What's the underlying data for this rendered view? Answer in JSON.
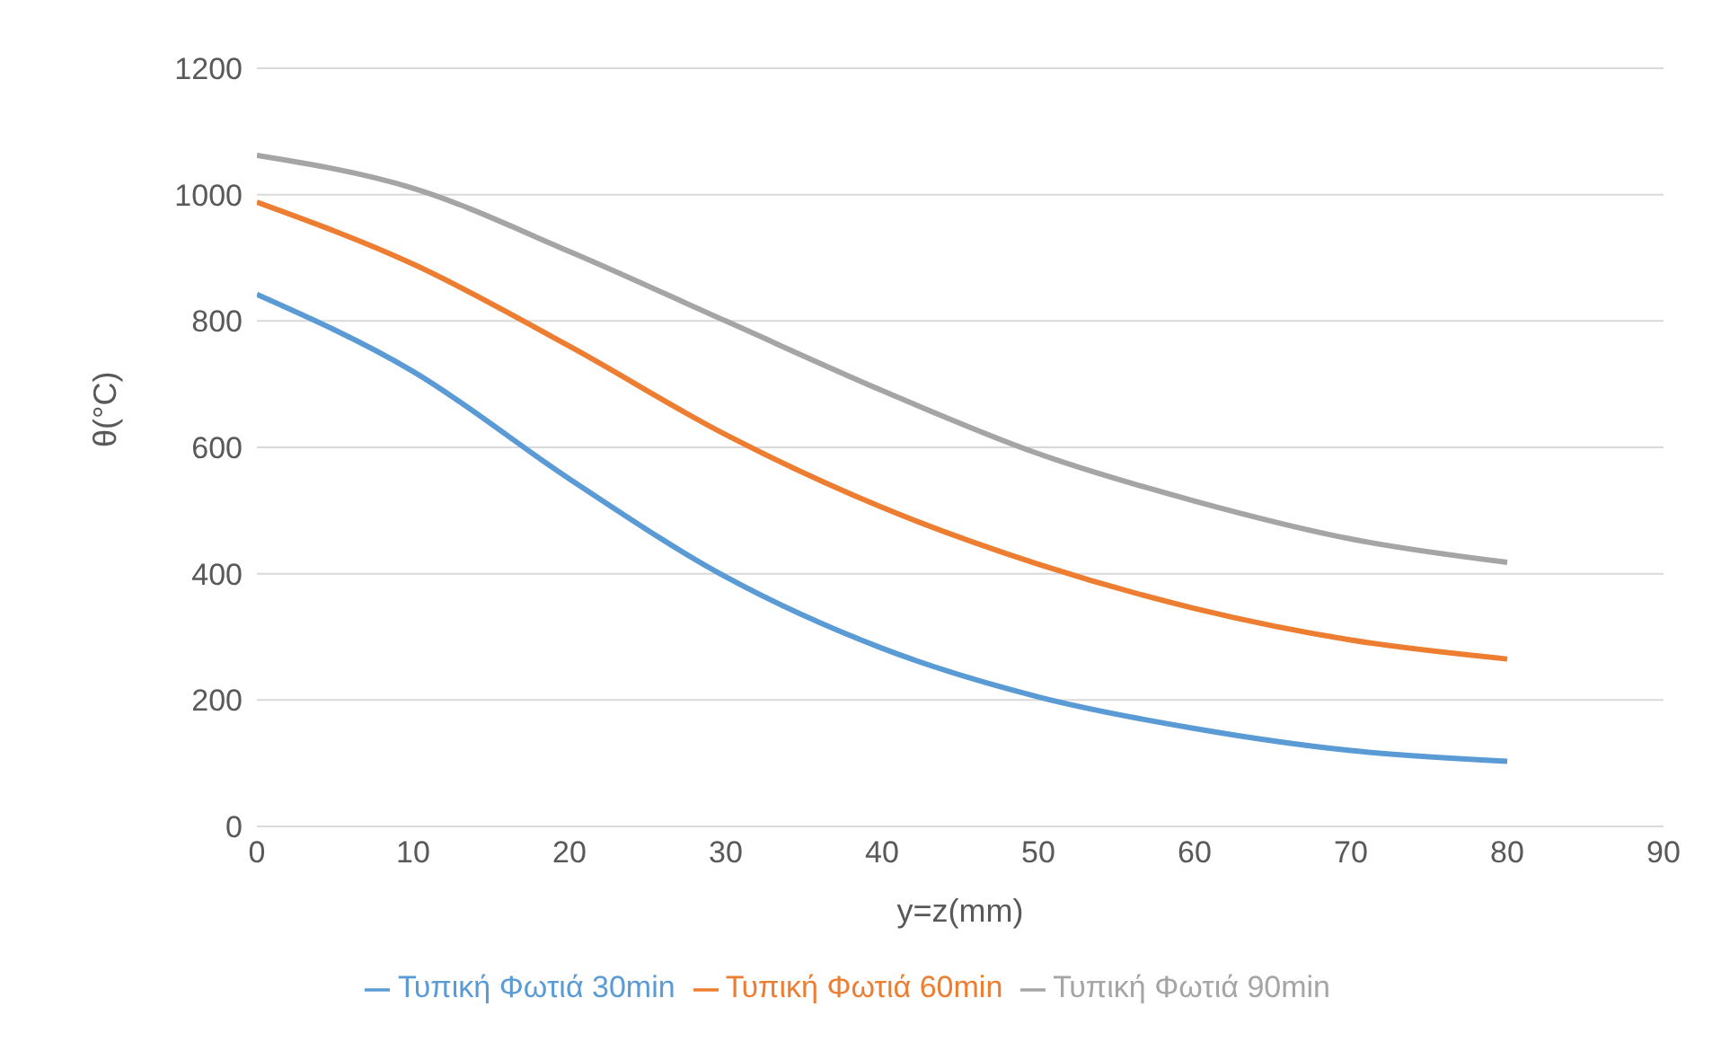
{
  "chart_data": {
    "type": "line",
    "xlabel": "y=z(mm)",
    "ylabel": "θ(°C)",
    "x": [
      0,
      10,
      20,
      30,
      40,
      50,
      60,
      70,
      80
    ],
    "series": [
      {
        "name": "Τυπική Φωτιά 30min",
        "color": "#5b9bd5",
        "values": [
          842,
          720,
          550,
          395,
          282,
          205,
          155,
          120,
          103
        ]
      },
      {
        "name": "Τυπική Φωτιά 60min",
        "color": "#ed7d31",
        "values": [
          988,
          890,
          760,
          620,
          505,
          415,
          345,
          295,
          265
        ]
      },
      {
        "name": "Τυπική Φωτιά 90min",
        "color": "#a5a5a5",
        "values": [
          1062,
          1010,
          910,
          800,
          690,
          590,
          515,
          455,
          418
        ]
      }
    ],
    "xlim": [
      0,
      90
    ],
    "xticks": [
      0,
      10,
      20,
      30,
      40,
      50,
      60,
      70,
      80,
      90
    ],
    "ylim": [
      0,
      1200
    ],
    "yticks": [
      0,
      200,
      400,
      600,
      800,
      1000,
      1200
    ],
    "grid": "y",
    "legend": "bottom",
    "marker": "none",
    "line_style": "solid"
  }
}
